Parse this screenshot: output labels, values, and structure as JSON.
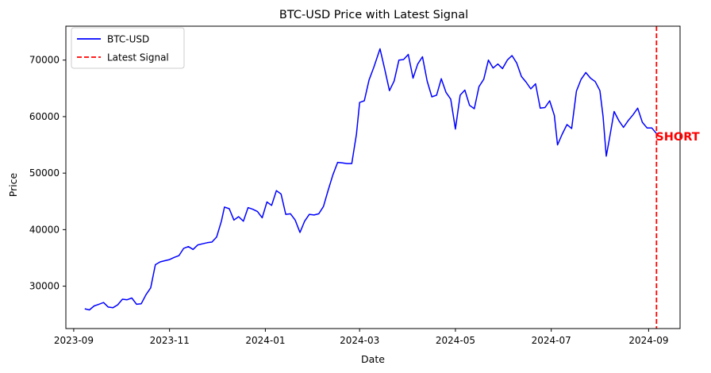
{
  "chart_data": {
    "type": "line",
    "title": "BTC-USD Price with Latest Signal",
    "xlabel": "Date",
    "ylabel": "Price",
    "xlim": [
      "2023-08-27",
      "2024-09-21"
    ],
    "ylim": [
      22500,
      76000
    ],
    "grid": false,
    "legend_placement": "top-left",
    "x_ticks": [
      "2023-09-01",
      "2023-11-01",
      "2024-01-01",
      "2024-03-01",
      "2024-05-01",
      "2024-07-01",
      "2024-09-01"
    ],
    "x_tick_labels": [
      "2023-09",
      "2023-11",
      "2024-01",
      "2024-03",
      "2024-05",
      "2024-07",
      "2024-09"
    ],
    "y_ticks": [
      30000,
      40000,
      50000,
      60000,
      70000
    ],
    "y_tick_labels": [
      "30000",
      "40000",
      "50000",
      "60000",
      "70000"
    ],
    "series": [
      {
        "name": "BTC-USD",
        "color": "#0000ff",
        "x": [
          "2023-09-08",
          "2023-09-11",
          "2023-09-14",
          "2023-09-17",
          "2023-09-20",
          "2023-09-23",
          "2023-09-26",
          "2023-09-29",
          "2023-10-02",
          "2023-10-05",
          "2023-10-08",
          "2023-10-11",
          "2023-10-14",
          "2023-10-17",
          "2023-10-20",
          "2023-10-23",
          "2023-10-26",
          "2023-10-29",
          "2023-11-01",
          "2023-11-04",
          "2023-11-07",
          "2023-11-10",
          "2023-11-13",
          "2023-11-16",
          "2023-11-19",
          "2023-11-22",
          "2023-11-25",
          "2023-11-28",
          "2023-12-01",
          "2023-12-04",
          "2023-12-06",
          "2023-12-09",
          "2023-12-12",
          "2023-12-15",
          "2023-12-18",
          "2023-12-21",
          "2023-12-24",
          "2023-12-27",
          "2023-12-30",
          "2024-01-02",
          "2024-01-05",
          "2024-01-08",
          "2024-01-11",
          "2024-01-14",
          "2024-01-17",
          "2024-01-20",
          "2024-01-23",
          "2024-01-26",
          "2024-01-29",
          "2024-02-01",
          "2024-02-04",
          "2024-02-07",
          "2024-02-10",
          "2024-02-13",
          "2024-02-16",
          "2024-02-19",
          "2024-02-22",
          "2024-02-25",
          "2024-02-28",
          "2024-03-01",
          "2024-03-04",
          "2024-03-07",
          "2024-03-10",
          "2024-03-14",
          "2024-03-17",
          "2024-03-20",
          "2024-03-23",
          "2024-03-26",
          "2024-03-29",
          "2024-04-01",
          "2024-04-04",
          "2024-04-07",
          "2024-04-10",
          "2024-04-13",
          "2024-04-16",
          "2024-04-19",
          "2024-04-22",
          "2024-04-25",
          "2024-04-28",
          "2024-05-01",
          "2024-05-04",
          "2024-05-07",
          "2024-05-10",
          "2024-05-13",
          "2024-05-16",
          "2024-05-19",
          "2024-05-22",
          "2024-05-25",
          "2024-05-28",
          "2024-05-31",
          "2024-06-03",
          "2024-06-06",
          "2024-06-09",
          "2024-06-12",
          "2024-06-15",
          "2024-06-18",
          "2024-06-21",
          "2024-06-24",
          "2024-06-27",
          "2024-06-30",
          "2024-07-03",
          "2024-07-05",
          "2024-07-08",
          "2024-07-11",
          "2024-07-14",
          "2024-07-17",
          "2024-07-20",
          "2024-07-23",
          "2024-07-26",
          "2024-07-29",
          "2024-08-01",
          "2024-08-03",
          "2024-08-05",
          "2024-08-07",
          "2024-08-10",
          "2024-08-13",
          "2024-08-16",
          "2024-08-19",
          "2024-08-22",
          "2024-08-25",
          "2024-08-28",
          "2024-08-31",
          "2024-09-03",
          "2024-09-06"
        ],
        "values": [
          26000,
          25800,
          26500,
          26800,
          27100,
          26300,
          26200,
          26700,
          27700,
          27600,
          27900,
          26800,
          26900,
          28500,
          29700,
          33800,
          34300,
          34500,
          34700,
          35100,
          35400,
          36700,
          37000,
          36500,
          37300,
          37500,
          37700,
          37800,
          38700,
          41500,
          44000,
          43700,
          41700,
          42300,
          41500,
          43900,
          43600,
          43200,
          42100,
          44900,
          44300,
          46900,
          46300,
          42700,
          42800,
          41700,
          39500,
          41500,
          42700,
          42600,
          42800,
          44100,
          47000,
          49700,
          51900,
          51800,
          51700,
          51700,
          56900,
          62500,
          62800,
          66500,
          68700,
          72000,
          68400,
          64600,
          66300,
          70000,
          70100,
          71000,
          66800,
          69300,
          70600,
          66300,
          63500,
          63800,
          66700,
          64300,
          63100,
          57800,
          63800,
          64700,
          62000,
          61400,
          65300,
          66600,
          70000,
          68600,
          69300,
          68500,
          70000,
          70800,
          69500,
          67100,
          66100,
          64900,
          65800,
          61500,
          61600,
          62800,
          60200,
          55000,
          56900,
          58600,
          57900,
          64500,
          66600,
          67800,
          66800,
          66200,
          64600,
          60000,
          53000,
          56000,
          60900,
          59300,
          58100,
          59300,
          60300,
          61500,
          59000,
          58000,
          58000,
          57000
        ]
      },
      {
        "name": "Latest Signal",
        "color": "#ff0000",
        "style": "dashed",
        "x_value": "2024-09-06"
      }
    ],
    "annotations": [
      {
        "text": "SHORT",
        "x": "2024-09-06",
        "y": 56500,
        "color": "#ff0000"
      }
    ]
  }
}
